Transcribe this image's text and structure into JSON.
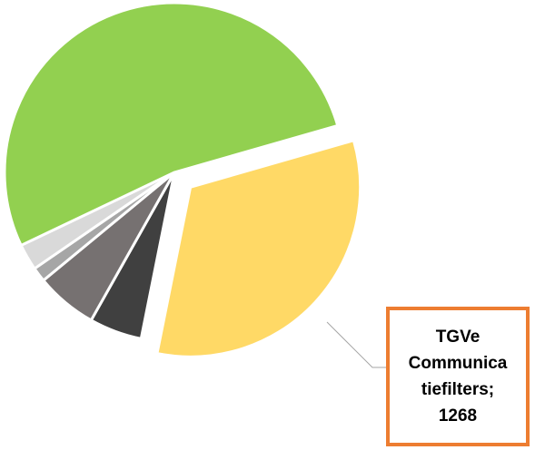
{
  "chart_data": {
    "type": "pie",
    "categories": [
      "TGVe Communicatiefilters",
      null,
      null,
      null,
      null,
      null
    ],
    "values": [
      1268,
      195,
      228,
      54,
      98,
      2048
    ],
    "value_labels": [
      "TGVe Communicatiefilters; 1268",
      null,
      null,
      null,
      null,
      null
    ],
    "colors": [
      "#FFD966",
      "#404040",
      "#767171",
      "#A6A6A6",
      "#D9D9D9",
      "#92D050"
    ]
  }
}
